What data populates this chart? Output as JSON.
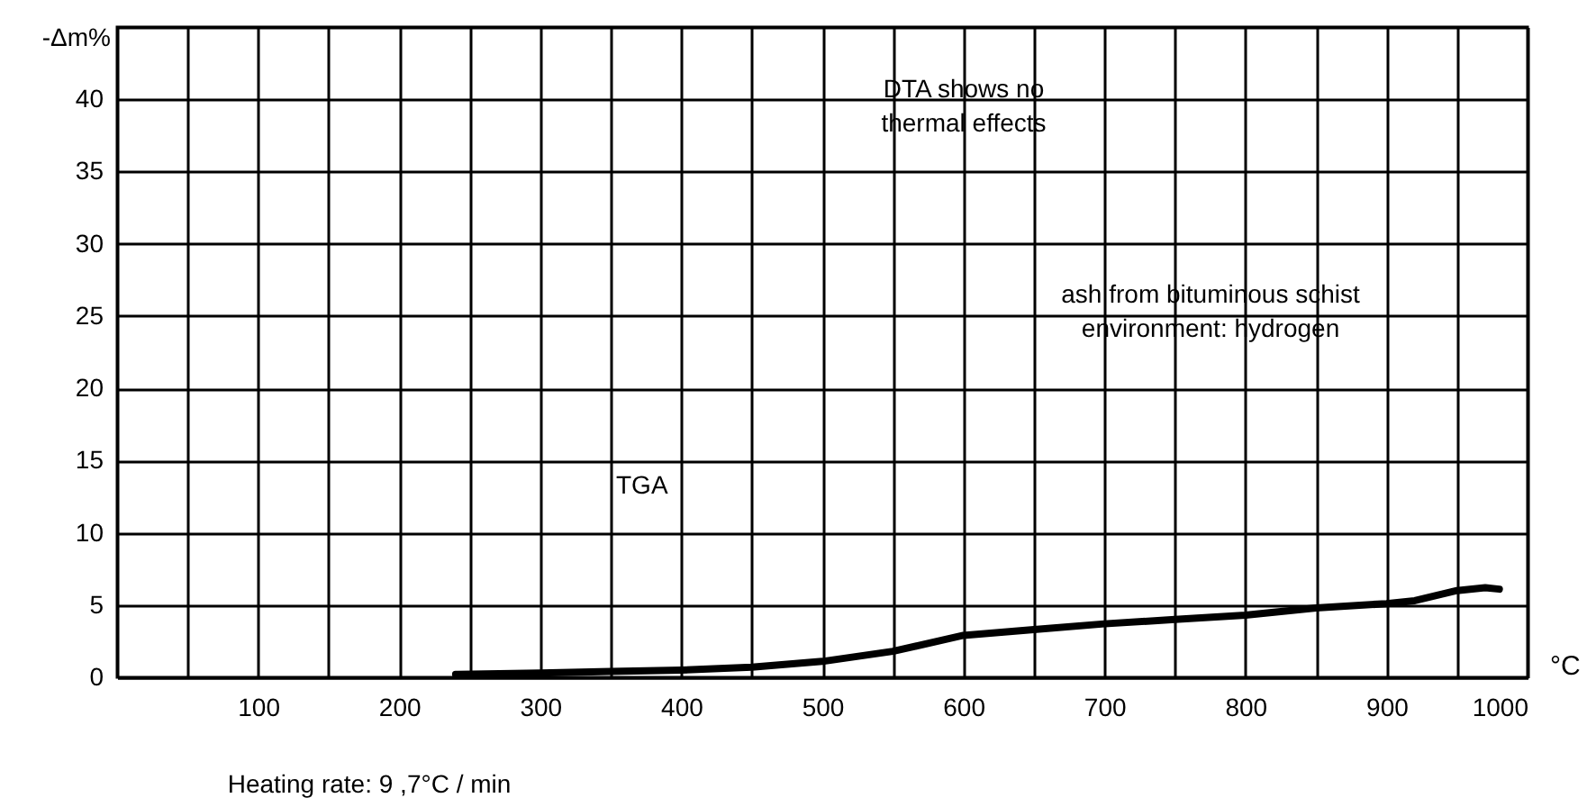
{
  "chart_data": {
    "type": "line",
    "xlabel": "°C",
    "ylabel": "-Δm%",
    "annotations": [
      "DTA shows no\nthermal effects",
      "ash from bituminous schist\nenvironment:  hydrogen",
      "Heating rate: 9 ,7°C / min"
    ],
    "x": [
      240,
      300,
      350,
      400,
      450,
      500,
      550,
      600,
      650,
      700,
      750,
      800,
      850,
      900,
      920,
      950,
      970,
      980
    ],
    "series": [
      {
        "name": "TGA",
        "color": "#000000",
        "values": [
          0.2,
          0.3,
          0.4,
          0.5,
          0.7,
          1.1,
          1.8,
          2.9,
          3.3,
          3.7,
          4.0,
          4.3,
          4.8,
          5.1,
          5.3,
          6.0,
          6.2,
          6.1
        ]
      }
    ],
    "xlim": [
      0,
      1000
    ],
    "xticks": [
      {
        "value": 50,
        "label": null
      },
      100,
      {
        "value": 150,
        "label": null
      },
      200,
      {
        "value": 250,
        "label": null
      },
      300,
      {
        "value": 350,
        "label": null
      },
      400,
      {
        "value": 450,
        "label": null
      },
      500,
      {
        "value": 550,
        "label": null
      },
      600,
      {
        "value": 650,
        "label": null
      },
      700,
      {
        "value": 750,
        "label": null
      },
      800,
      {
        "value": 850,
        "label": null
      },
      900,
      {
        "value": 950,
        "label": null
      },
      1000
    ],
    "ylim": [
      0,
      45
    ],
    "yticks": [
      0,
      5,
      10,
      15,
      20,
      25,
      30,
      35,
      40,
      {
        "value": 45,
        "label": null
      }
    ],
    "grid": true,
    "marker": "none",
    "line_style": "solid"
  }
}
